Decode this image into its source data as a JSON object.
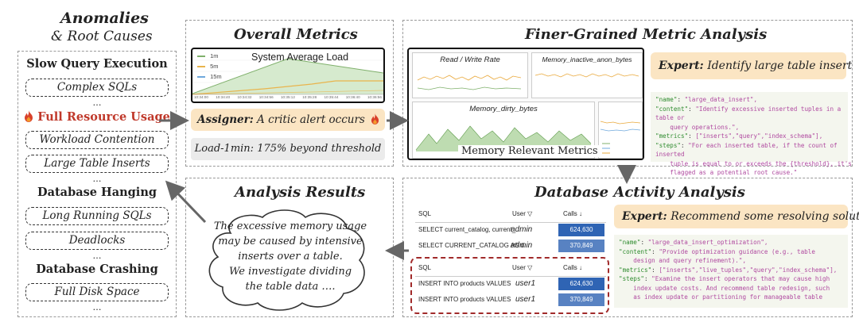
{
  "left": {
    "title": "Anomalies",
    "subtitle": "& Root Causes",
    "sections": [
      {
        "name": "Slow Query Execution",
        "items": [
          "Complex SQLs"
        ]
      },
      {
        "name": "Full Resource Usage",
        "items": [
          "Workload Contention",
          "Large Table Inserts"
        ]
      },
      {
        "name": "Database Hanging",
        "items": [
          "Long Running SQLs",
          "Deadlocks"
        ]
      },
      {
        "name": "Database Crashing",
        "items": [
          "Full Disk Space"
        ]
      }
    ],
    "ellipsis": "…"
  },
  "overall": {
    "title": "Overall Metrics",
    "chart_title": "System Average Load",
    "legend": [
      "1m",
      "5m",
      "15m"
    ],
    "xticks": [
      "10:34:00",
      "10:34:40",
      "10:34:32",
      "10:34:56",
      "10:35:12",
      "10:35:28",
      "10:35:44",
      "10:36:40",
      "10:36:56"
    ],
    "assigner_label": "Assigner:",
    "assigner_text": "A critic alert occurs",
    "load_text": "Load-1min: 175% beyond threshold"
  },
  "finer": {
    "title": "Finer-Grained Metric Analysis",
    "charts": [
      "Read / Write Rate",
      "Memory_inactive_anon_bytes",
      "Memory_dirty_bytes"
    ],
    "caption": "Memory Relevant Metrics",
    "expert_label": "Expert:",
    "expert_text": "Identify large table insert",
    "code": [
      {
        "k": "\"name\"",
        "v": "\"large_data_insert\","
      },
      {
        "k": "\"content\"",
        "v": "\"Identify excessive inserted tuples in a table or"
      },
      {
        "k": "",
        "v": "    query operations.\","
      },
      {
        "k": "\"metrics\"",
        "v": "[\"inserts\",\"query\",\"index_schema\"],"
      },
      {
        "k": "\"steps\"",
        "v": "\"For each inserted table, if the count of inserted"
      },
      {
        "k": "",
        "v": "    tuple is equal to or exceeds the {threshold}, it's"
      },
      {
        "k": "",
        "v": "    flagged as a potential root cause.\""
      }
    ]
  },
  "results": {
    "title": "Analysis Results",
    "lines": [
      "The excessive memory usage",
      "may be caused by intensive",
      "inserts over a table.",
      "We investigate dividing",
      "the table data …."
    ]
  },
  "activity": {
    "title": "Database Activity Analysis",
    "headers": {
      "sql": "SQL",
      "user": "User ▽",
      "calls": "Calls ↓"
    },
    "rows_top": [
      {
        "sql": "SELECT current_catalog, current_...",
        "user": "admin",
        "calls": "624,630"
      },
      {
        "sql": "SELECT CURRENT_CATALOG AS d...",
        "user": "admin",
        "calls": "370,849"
      }
    ],
    "rows_bottom": [
      {
        "sql": "INSERT INTO products VALUES",
        "user": "user1",
        "calls": "624,630"
      },
      {
        "sql": "INSERT INTO products VALUES",
        "user": "user1",
        "calls": "370,849"
      }
    ],
    "expert_label": "Expert:",
    "expert_text": "Recommend some resolving solution",
    "code": [
      {
        "k": "\"name\"",
        "v": "\"large_data_insert_optimization\","
      },
      {
        "k": "\"content\"",
        "v": "\"Provide optimization guidance (e.g., table"
      },
      {
        "k": "",
        "v": "    design and query refinement).\","
      },
      {
        "k": "\"metrics\"",
        "v": "[\"inserts\",\"live_tuples\",\"query\",\"index_schema\"],"
      },
      {
        "k": "\"steps\"",
        "v": "\"Examine the insert operators that may cause high"
      },
      {
        "k": "",
        "v": "    index update costs. And recommend table redesign, such"
      },
      {
        "k": "",
        "v": "    as index update or partitioning for manageable table"
      }
    ]
  },
  "colors": {
    "accent": "#c0392b",
    "orange": "#fbe5c3",
    "calls": "#2f64b4"
  }
}
